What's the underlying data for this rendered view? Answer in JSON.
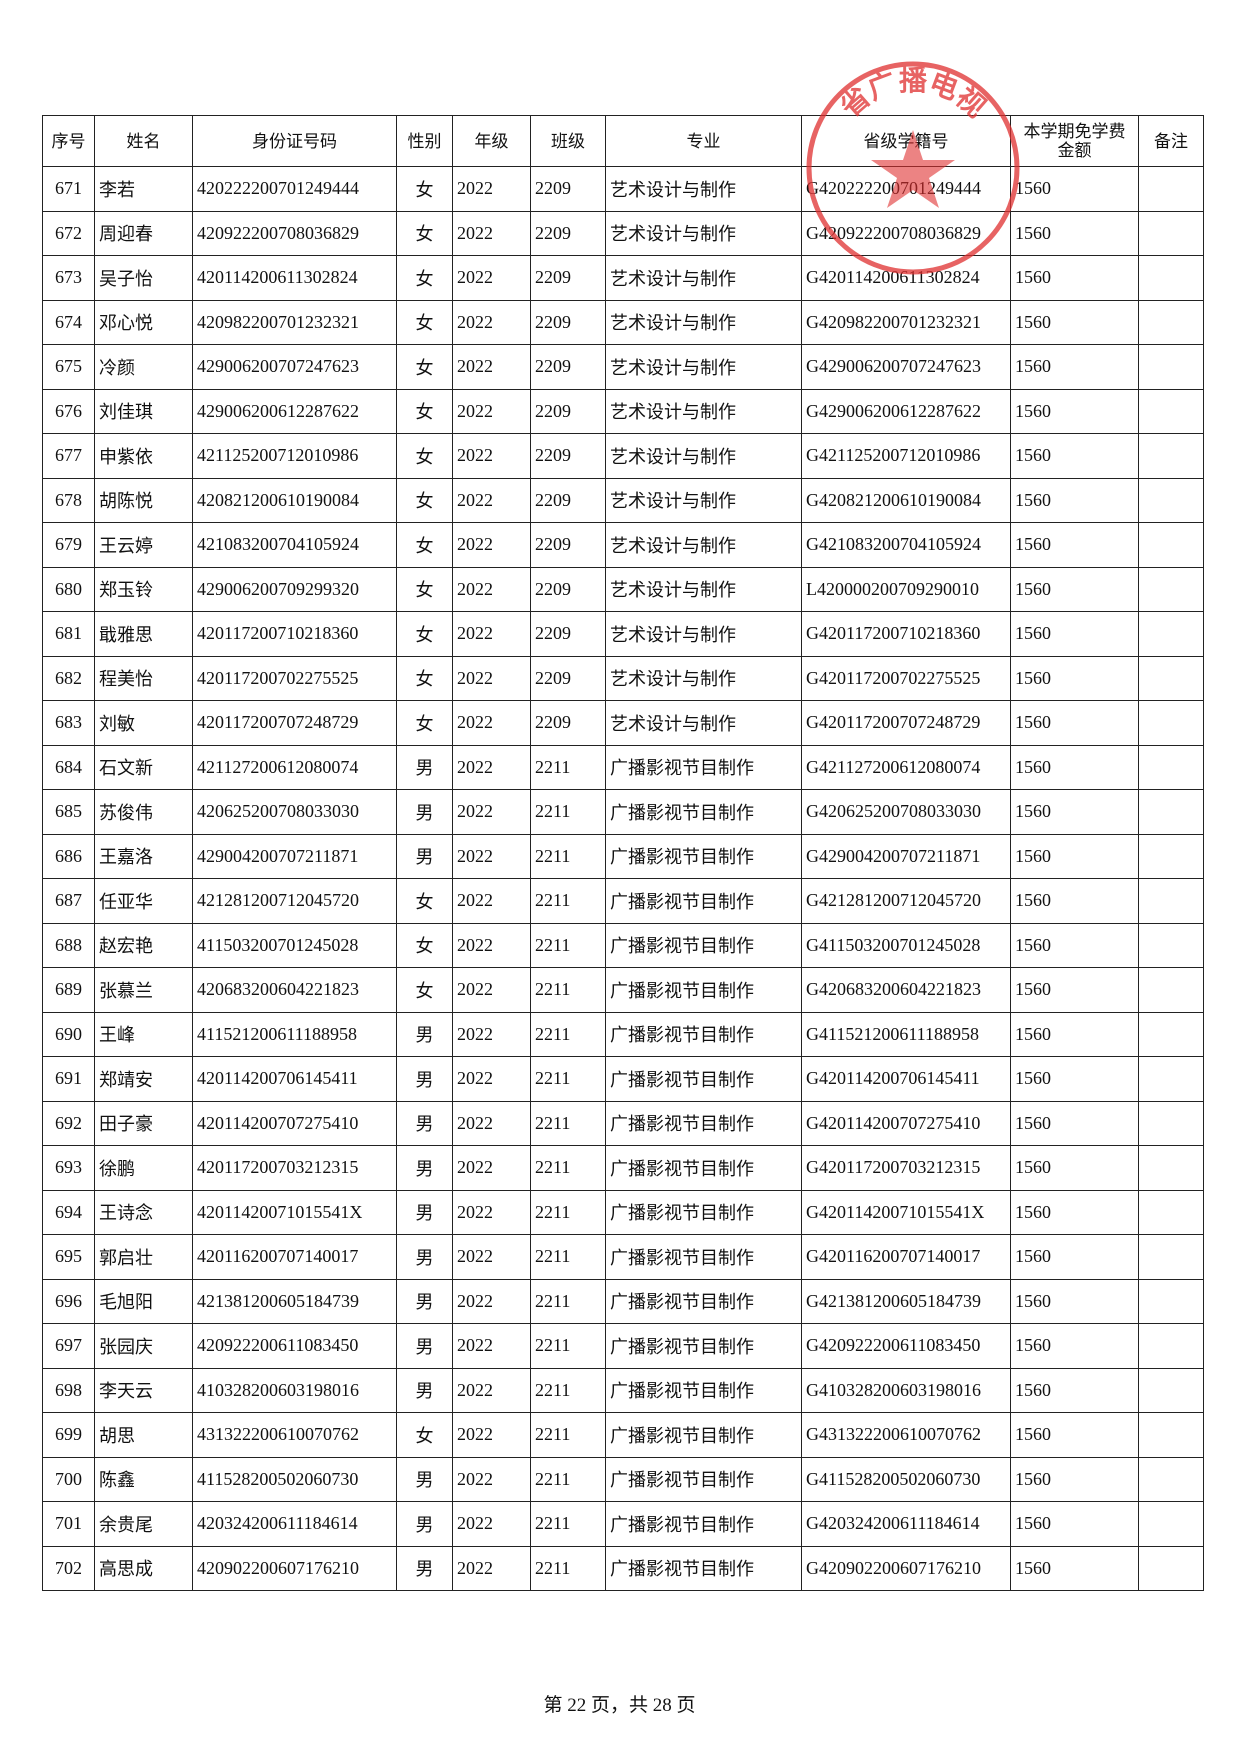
{
  "table": {
    "header": [
      "序号",
      "姓名",
      "身份证号码",
      "性别",
      "年级",
      "班级",
      "专业",
      "省级学籍号",
      [
        "本学期免学费",
        "金额"
      ],
      "备注"
    ],
    "rows": [
      [
        "671",
        "李若",
        "420222200701249444",
        "女",
        "2022",
        "2209",
        "艺术设计与制作",
        "G420222200701249444",
        "1560",
        ""
      ],
      [
        "672",
        "周迎春",
        "420922200708036829",
        "女",
        "2022",
        "2209",
        "艺术设计与制作",
        "G420922200708036829",
        "1560",
        ""
      ],
      [
        "673",
        "吴子怡",
        "420114200611302824",
        "女",
        "2022",
        "2209",
        "艺术设计与制作",
        "G420114200611302824",
        "1560",
        ""
      ],
      [
        "674",
        "邓心悦",
        "420982200701232321",
        "女",
        "2022",
        "2209",
        "艺术设计与制作",
        "G420982200701232321",
        "1560",
        ""
      ],
      [
        "675",
        "冷颜",
        "429006200707247623",
        "女",
        "2022",
        "2209",
        "艺术设计与制作",
        "G429006200707247623",
        "1560",
        ""
      ],
      [
        "676",
        "刘佳琪",
        "429006200612287622",
        "女",
        "2022",
        "2209",
        "艺术设计与制作",
        "G429006200612287622",
        "1560",
        ""
      ],
      [
        "677",
        "申紫依",
        "421125200712010986",
        "女",
        "2022",
        "2209",
        "艺术设计与制作",
        "G421125200712010986",
        "1560",
        ""
      ],
      [
        "678",
        "胡陈悦",
        "420821200610190084",
        "女",
        "2022",
        "2209",
        "艺术设计与制作",
        "G420821200610190084",
        "1560",
        ""
      ],
      [
        "679",
        "王云婷",
        "421083200704105924",
        "女",
        "2022",
        "2209",
        "艺术设计与制作",
        "G421083200704105924",
        "1560",
        ""
      ],
      [
        "680",
        "郑玉铃",
        "429006200709299320",
        "女",
        "2022",
        "2209",
        "艺术设计与制作",
        "L420000200709290010",
        "1560",
        ""
      ],
      [
        "681",
        "戢雅思",
        "420117200710218360",
        "女",
        "2022",
        "2209",
        "艺术设计与制作",
        "G420117200710218360",
        "1560",
        ""
      ],
      [
        "682",
        "程美怡",
        "420117200702275525",
        "女",
        "2022",
        "2209",
        "艺术设计与制作",
        "G420117200702275525",
        "1560",
        ""
      ],
      [
        "683",
        "刘敏",
        "420117200707248729",
        "女",
        "2022",
        "2209",
        "艺术设计与制作",
        "G420117200707248729",
        "1560",
        ""
      ],
      [
        "684",
        "石文新",
        "421127200612080074",
        "男",
        "2022",
        "2211",
        "广播影视节目制作",
        "G421127200612080074",
        "1560",
        ""
      ],
      [
        "685",
        "苏俊伟",
        "420625200708033030",
        "男",
        "2022",
        "2211",
        "广播影视节目制作",
        "G420625200708033030",
        "1560",
        ""
      ],
      [
        "686",
        "王嘉洛",
        "429004200707211871",
        "男",
        "2022",
        "2211",
        "广播影视节目制作",
        "G429004200707211871",
        "1560",
        ""
      ],
      [
        "687",
        "任亚华",
        "421281200712045720",
        "女",
        "2022",
        "2211",
        "广播影视节目制作",
        "G421281200712045720",
        "1560",
        ""
      ],
      [
        "688",
        "赵宏艳",
        "411503200701245028",
        "女",
        "2022",
        "2211",
        "广播影视节目制作",
        "G411503200701245028",
        "1560",
        ""
      ],
      [
        "689",
        "张慕兰",
        "420683200604221823",
        "女",
        "2022",
        "2211",
        "广播影视节目制作",
        "G420683200604221823",
        "1560",
        ""
      ],
      [
        "690",
        "王峰",
        "411521200611188958",
        "男",
        "2022",
        "2211",
        "广播影视节目制作",
        "G411521200611188958",
        "1560",
        ""
      ],
      [
        "691",
        "郑靖安",
        "420114200706145411",
        "男",
        "2022",
        "2211",
        "广播影视节目制作",
        "G420114200706145411",
        "1560",
        ""
      ],
      [
        "692",
        "田子豪",
        "420114200707275410",
        "男",
        "2022",
        "2211",
        "广播影视节目制作",
        "G420114200707275410",
        "1560",
        ""
      ],
      [
        "693",
        "徐鹏",
        "420117200703212315",
        "男",
        "2022",
        "2211",
        "广播影视节目制作",
        "G420117200703212315",
        "1560",
        ""
      ],
      [
        "694",
        "王诗念",
        "42011420071015541X",
        "男",
        "2022",
        "2211",
        "广播影视节目制作",
        "G42011420071015541X",
        "1560",
        ""
      ],
      [
        "695",
        "郭启壮",
        "420116200707140017",
        "男",
        "2022",
        "2211",
        "广播影视节目制作",
        "G420116200707140017",
        "1560",
        ""
      ],
      [
        "696",
        "毛旭阳",
        "421381200605184739",
        "男",
        "2022",
        "2211",
        "广播影视节目制作",
        "G421381200605184739",
        "1560",
        ""
      ],
      [
        "697",
        "张园庆",
        "420922200611083450",
        "男",
        "2022",
        "2211",
        "广播影视节目制作",
        "G420922200611083450",
        "1560",
        ""
      ],
      [
        "698",
        "李天云",
        "410328200603198016",
        "男",
        "2022",
        "2211",
        "广播影视节目制作",
        "G410328200603198016",
        "1560",
        ""
      ],
      [
        "699",
        "胡思",
        "431322200610070762",
        "女",
        "2022",
        "2211",
        "广播影视节目制作",
        "G431322200610070762",
        "1560",
        ""
      ],
      [
        "700",
        "陈鑫",
        "411528200502060730",
        "男",
        "2022",
        "2211",
        "广播影视节目制作",
        "G411528200502060730",
        "1560",
        ""
      ],
      [
        "701",
        "余贵尾",
        "420324200611184614",
        "男",
        "2022",
        "2211",
        "广播影视节目制作",
        "G420324200611184614",
        "1560",
        ""
      ],
      [
        "702",
        "高思成",
        "420902200607176210",
        "男",
        "2022",
        "2211",
        "广播影视节目制作",
        "G420902200607176210",
        "1560",
        ""
      ]
    ]
  },
  "stamp": "省广播电视",
  "footer": "第 22 页，共 28 页"
}
